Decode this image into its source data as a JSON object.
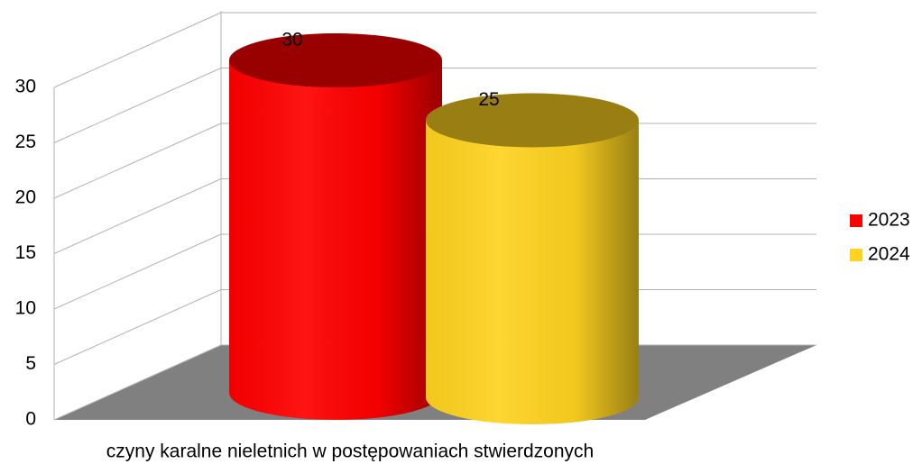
{
  "chart_data": {
    "type": "bar",
    "categories": [
      "czyny karalne nieletnich w postępowaniach stwierdzonych"
    ],
    "series": [
      {
        "name": "2023",
        "color": "#ff0000",
        "values": [
          30
        ]
      },
      {
        "name": "2024",
        "color": "#ffd320",
        "values": [
          25
        ]
      }
    ],
    "ylim": [
      0,
      30
    ],
    "yticks": [
      0,
      5,
      10,
      15,
      20,
      25,
      30
    ],
    "grid": true,
    "legend": "right"
  }
}
